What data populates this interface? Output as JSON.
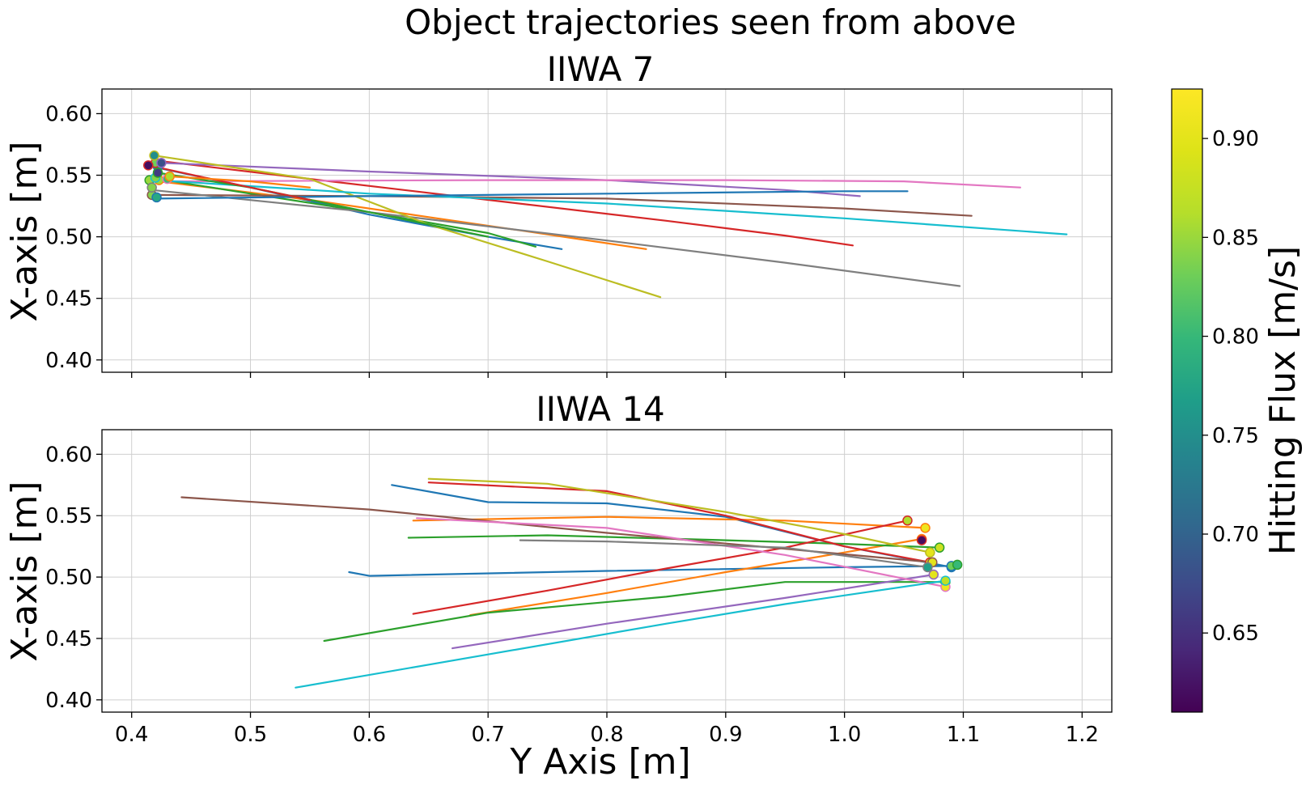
{
  "chart_data": {
    "type": "line",
    "title": "Object trajectories seen from above",
    "xlabel": "Y Axis [m]",
    "x_ticks": [
      "0.4",
      "0.5",
      "0.6",
      "0.7",
      "0.8",
      "0.9",
      "1.0",
      "1.1",
      "1.2"
    ],
    "y_ticks": [
      "0.40",
      "0.45",
      "0.50",
      "0.55",
      "0.60"
    ],
    "xlim": [
      0.375,
      1.225
    ],
    "ylim": [
      0.39,
      0.62
    ],
    "grid": true,
    "colorbar": {
      "label": "Hitting Flux [m/s]",
      "range": [
        0.61,
        0.925
      ],
      "ticks": [
        "0.65",
        "0.70",
        "0.75",
        "0.80",
        "0.85",
        "0.90"
      ],
      "colormap": "viridis"
    },
    "panels": [
      {
        "title": "IIWA 7",
        "ylabel": "X-axis [m]",
        "series": [
          {
            "color": "#1f77b4",
            "points": [
              [
                0.422,
                0.556
              ],
              [
                0.5,
                0.54
              ],
              [
                0.6,
                0.518
              ],
              [
                0.7,
                0.5
              ],
              [
                0.762,
                0.49
              ]
            ],
            "start": [
              0.422,
              0.557
            ],
            "flux": 0.73
          },
          {
            "color": "#ff7f0e",
            "points": [
              [
                0.423,
                0.545
              ],
              [
                0.55,
                0.53
              ],
              [
                0.65,
                0.516
              ],
              [
                0.75,
                0.502
              ],
              [
                0.833,
                0.49
              ]
            ],
            "start": [
              0.423,
              0.546
            ],
            "flux": 0.85
          },
          {
            "color": "#2ca02c",
            "points": [
              [
                0.415,
                0.548
              ],
              [
                0.5,
                0.535
              ],
              [
                0.6,
                0.52
              ],
              [
                0.7,
                0.503
              ],
              [
                0.74,
                0.492
              ]
            ],
            "start": [
              0.415,
              0.546
            ],
            "flux": 0.85
          },
          {
            "color": "#d62728",
            "points": [
              [
                0.42,
                0.562
              ],
              [
                0.55,
                0.547
              ],
              [
                0.7,
                0.53
              ],
              [
                0.85,
                0.513
              ],
              [
                0.95,
                0.501
              ],
              [
                1.007,
                0.493
              ]
            ],
            "start": [
              0.42,
              0.56
            ],
            "flux": 0.83
          },
          {
            "color": "#9467bd",
            "points": [
              [
                0.425,
                0.56
              ],
              [
                0.6,
                0.553
              ],
              [
                0.8,
                0.546
              ],
              [
                0.95,
                0.538
              ],
              [
                1.013,
                0.533
              ]
            ],
            "start": [
              0.425,
              0.56
            ],
            "flux": 0.68
          },
          {
            "color": "#8c564b",
            "points": [
              [
                0.417,
                0.534
              ],
              [
                0.6,
                0.533
              ],
              [
                0.8,
                0.531
              ],
              [
                1.0,
                0.523
              ],
              [
                1.107,
                0.517
              ]
            ],
            "start": [
              0.417,
              0.534
            ],
            "flux": 0.84
          },
          {
            "color": "#e377c2",
            "points": [
              [
                0.43,
                0.545
              ],
              [
                0.7,
                0.546
              ],
              [
                0.9,
                0.546
              ],
              [
                1.05,
                0.545
              ],
              [
                1.148,
                0.54
              ]
            ],
            "start": [
              0.43,
              0.547
            ],
            "flux": 0.8
          },
          {
            "color": "#7f7f7f",
            "points": [
              [
                0.417,
                0.538
              ],
              [
                0.6,
                0.52
              ],
              [
                0.8,
                0.497
              ],
              [
                0.95,
                0.479
              ],
              [
                1.097,
                0.46
              ]
            ],
            "start": [
              0.417,
              0.54
            ],
            "flux": 0.84
          },
          {
            "color": "#bcbd22",
            "points": [
              [
                0.419,
                0.566
              ],
              [
                0.55,
                0.547
              ],
              [
                0.65,
                0.51
              ],
              [
                0.75,
                0.48
              ],
              [
                0.845,
                0.451
              ]
            ],
            "start": [
              0.419,
              0.566
            ],
            "flux": 0.75
          },
          {
            "color": "#17becf",
            "points": [
              [
                0.42,
                0.546
              ],
              [
                0.6,
                0.535
              ],
              [
                0.8,
                0.527
              ],
              [
                1.0,
                0.515
              ],
              [
                1.187,
                0.502
              ]
            ],
            "start": [
              0.42,
              0.548
            ],
            "flux": 0.84
          },
          {
            "color": "#1f77b4",
            "points": [
              [
                0.421,
                0.531
              ],
              [
                0.6,
                0.533
              ],
              [
                0.8,
                0.535
              ],
              [
                1.0,
                0.537
              ],
              [
                1.053,
                0.537
              ]
            ],
            "start": [
              0.421,
              0.532
            ],
            "flux": 0.78
          },
          {
            "color": "#2ca02c",
            "points": [
              [
                0.422,
                0.552
              ],
              [
                0.5,
                0.54
              ],
              [
                0.6,
                0.52
              ],
              [
                0.7,
                0.5
              ]
            ],
            "start": [
              0.422,
              0.552
            ],
            "flux": 0.66
          },
          {
            "color": "#d62728",
            "points": [
              [
                0.414,
                0.558
              ],
              [
                0.5,
                0.54
              ],
              [
                0.55,
                0.53
              ]
            ],
            "start": [
              0.414,
              0.558
            ],
            "flux": 0.62
          },
          {
            "color": "#ff7f0e",
            "points": [
              [
                0.432,
                0.549
              ],
              [
                0.5,
                0.545
              ],
              [
                0.55,
                0.54
              ]
            ],
            "start": [
              0.432,
              0.549
            ],
            "flux": 0.86
          }
        ]
      },
      {
        "title": "IIWA 14",
        "ylabel": "X-axis [m]",
        "series": [
          {
            "color": "#1f77b4",
            "points": [
              [
                0.619,
                0.575
              ],
              [
                0.7,
                0.561
              ],
              [
                0.8,
                0.56
              ],
              [
                0.9,
                0.549
              ],
              [
                1.0,
                0.525
              ],
              [
                1.09,
                0.508
              ]
            ],
            "start": [
              1.09,
              0.508
            ],
            "flux": 0.75
          },
          {
            "color": "#1f77b4",
            "points": [
              [
                0.583,
                0.504
              ],
              [
                0.6,
                0.501
              ],
              [
                0.8,
                0.505
              ],
              [
                1.0,
                0.508
              ],
              [
                1.09,
                0.509
              ]
            ],
            "start": [
              1.09,
              0.509
            ],
            "flux": 0.83
          },
          {
            "color": "#ff7f0e",
            "points": [
              [
                0.637,
                0.546
              ],
              [
                0.8,
                0.549
              ],
              [
                0.95,
                0.546
              ],
              [
                1.068,
                0.54
              ]
            ],
            "start": [
              1.068,
              0.54
            ],
            "flux": 0.91
          },
          {
            "color": "#ff7f0e",
            "points": [
              [
                0.685,
                0.469
              ],
              [
                0.8,
                0.487
              ],
              [
                0.9,
                0.504
              ],
              [
                1.0,
                0.52
              ],
              [
                1.065,
                0.531
              ]
            ],
            "start": [
              1.065,
              0.531
            ],
            "flux": 0.92
          },
          {
            "color": "#2ca02c",
            "points": [
              [
                0.633,
                0.532
              ],
              [
                0.75,
                0.534
              ],
              [
                0.9,
                0.53
              ],
              [
                1.0,
                0.527
              ],
              [
                1.08,
                0.524
              ]
            ],
            "start": [
              1.08,
              0.524
            ],
            "flux": 0.88
          },
          {
            "color": "#2ca02c",
            "points": [
              [
                0.562,
                0.448
              ],
              [
                0.7,
                0.471
              ],
              [
                0.85,
                0.484
              ],
              [
                0.95,
                0.496
              ],
              [
                1.085,
                0.496
              ]
            ],
            "start": [
              1.085,
              0.496
            ],
            "flux": 0.88
          },
          {
            "color": "#d62728",
            "points": [
              [
                0.65,
                0.577
              ],
              [
                0.8,
                0.57
              ],
              [
                0.9,
                0.55
              ],
              [
                1.0,
                0.525
              ],
              [
                1.072,
                0.512
              ]
            ],
            "start": [
              1.072,
              0.512
            ],
            "flux": 0.88
          },
          {
            "color": "#d62728",
            "points": [
              [
                0.637,
                0.47
              ],
              [
                0.75,
                0.489
              ],
              [
                0.85,
                0.507
              ],
              [
                0.95,
                0.524
              ],
              [
                1.053,
                0.546
              ]
            ],
            "start": [
              1.053,
              0.546
            ],
            "flux": 0.86
          },
          {
            "color": "#9467bd",
            "points": [
              [
                0.67,
                0.442
              ],
              [
                0.8,
                0.462
              ],
              [
                0.95,
                0.483
              ],
              [
                1.075,
                0.502
              ]
            ],
            "start": [
              1.075,
              0.502
            ],
            "flux": 0.9
          },
          {
            "color": "#8c564b",
            "points": [
              [
                0.442,
                0.565
              ],
              [
                0.6,
                0.555
              ],
              [
                0.8,
                0.536
              ],
              [
                0.95,
                0.523
              ],
              [
                1.074,
                0.512
              ]
            ],
            "start": [
              1.074,
              0.512
            ],
            "flux": 0.9
          },
          {
            "color": "#e377c2",
            "points": [
              [
                0.64,
                0.548
              ],
              [
                0.8,
                0.54
              ],
              [
                0.95,
                0.518
              ],
              [
                1.085,
                0.492
              ]
            ],
            "start": [
              1.085,
              0.492
            ],
            "flux": 0.91
          },
          {
            "color": "#7f7f7f",
            "points": [
              [
                0.727,
                0.53
              ],
              [
                0.8,
                0.529
              ],
              [
                0.95,
                0.524
              ],
              [
                1.07,
                0.508
              ]
            ],
            "start": [
              1.07,
              0.508
            ],
            "flux": 0.77
          },
          {
            "color": "#bcbd22",
            "points": [
              [
                0.65,
                0.58
              ],
              [
                0.75,
                0.576
              ],
              [
                0.9,
                0.553
              ],
              [
                1.0,
                0.535
              ],
              [
                1.072,
                0.52
              ]
            ],
            "start": [
              1.072,
              0.52
            ],
            "flux": 0.9
          },
          {
            "color": "#17becf",
            "points": [
              [
                0.538,
                0.41
              ],
              [
                0.7,
                0.437
              ],
              [
                0.85,
                0.462
              ],
              [
                0.95,
                0.478
              ],
              [
                1.085,
                0.497
              ]
            ],
            "start": [
              1.085,
              0.497
            ],
            "flux": 0.87
          },
          {
            "color": "#d62728",
            "points": [
              [
                1.065,
                0.53
              ]
            ],
            "start": [
              1.065,
              0.53
            ],
            "flux": 0.62
          },
          {
            "color": "#2ca02c",
            "points": [
              [
                1.095,
                0.51
              ]
            ],
            "start": [
              1.095,
              0.51
            ],
            "flux": 0.8
          }
        ]
      }
    ]
  }
}
